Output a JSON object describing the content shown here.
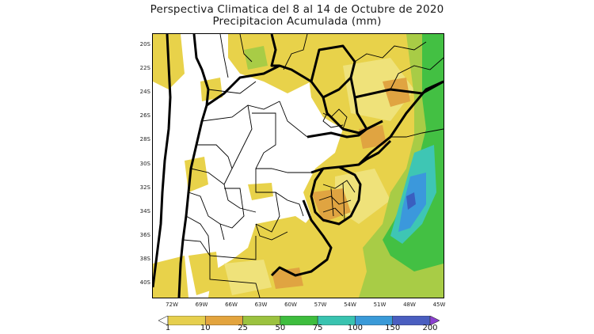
{
  "title": {
    "line1": "Perspectiva Climatica del 8 al 14 de Octubre de 2020",
    "line2": "Precipitacion Acumulada (mm)"
  },
  "lat_labels": [
    "20S",
    "22S",
    "24S",
    "26S",
    "28S",
    "30S",
    "32S",
    "34S",
    "36S",
    "38S",
    "40S"
  ],
  "lon_labels": [
    "72W",
    "69W",
    "66W",
    "63W",
    "60W",
    "57W",
    "54W",
    "51W",
    "48W",
    "45W"
  ],
  "legend": {
    "labels": [
      "1",
      "10",
      "25",
      "50",
      "75",
      "100",
      "150",
      "200"
    ],
    "colors": [
      "#ffffff",
      "#e6cf4e",
      "#e3a43e",
      "#9bc23f",
      "#3ebd3e",
      "#39c3b0",
      "#3a9ad8",
      "#4a5ec0",
      "#8b3fd0"
    ]
  },
  "palette": {
    "yellow": "#e8d24a",
    "light_yellow": "#efe27a",
    "orange": "#e0a441",
    "light_green": "#a8cc46",
    "green": "#43c043",
    "teal": "#3ec6b4",
    "blue": "#3b98dc",
    "dark_blue": "#3a5fc0"
  }
}
